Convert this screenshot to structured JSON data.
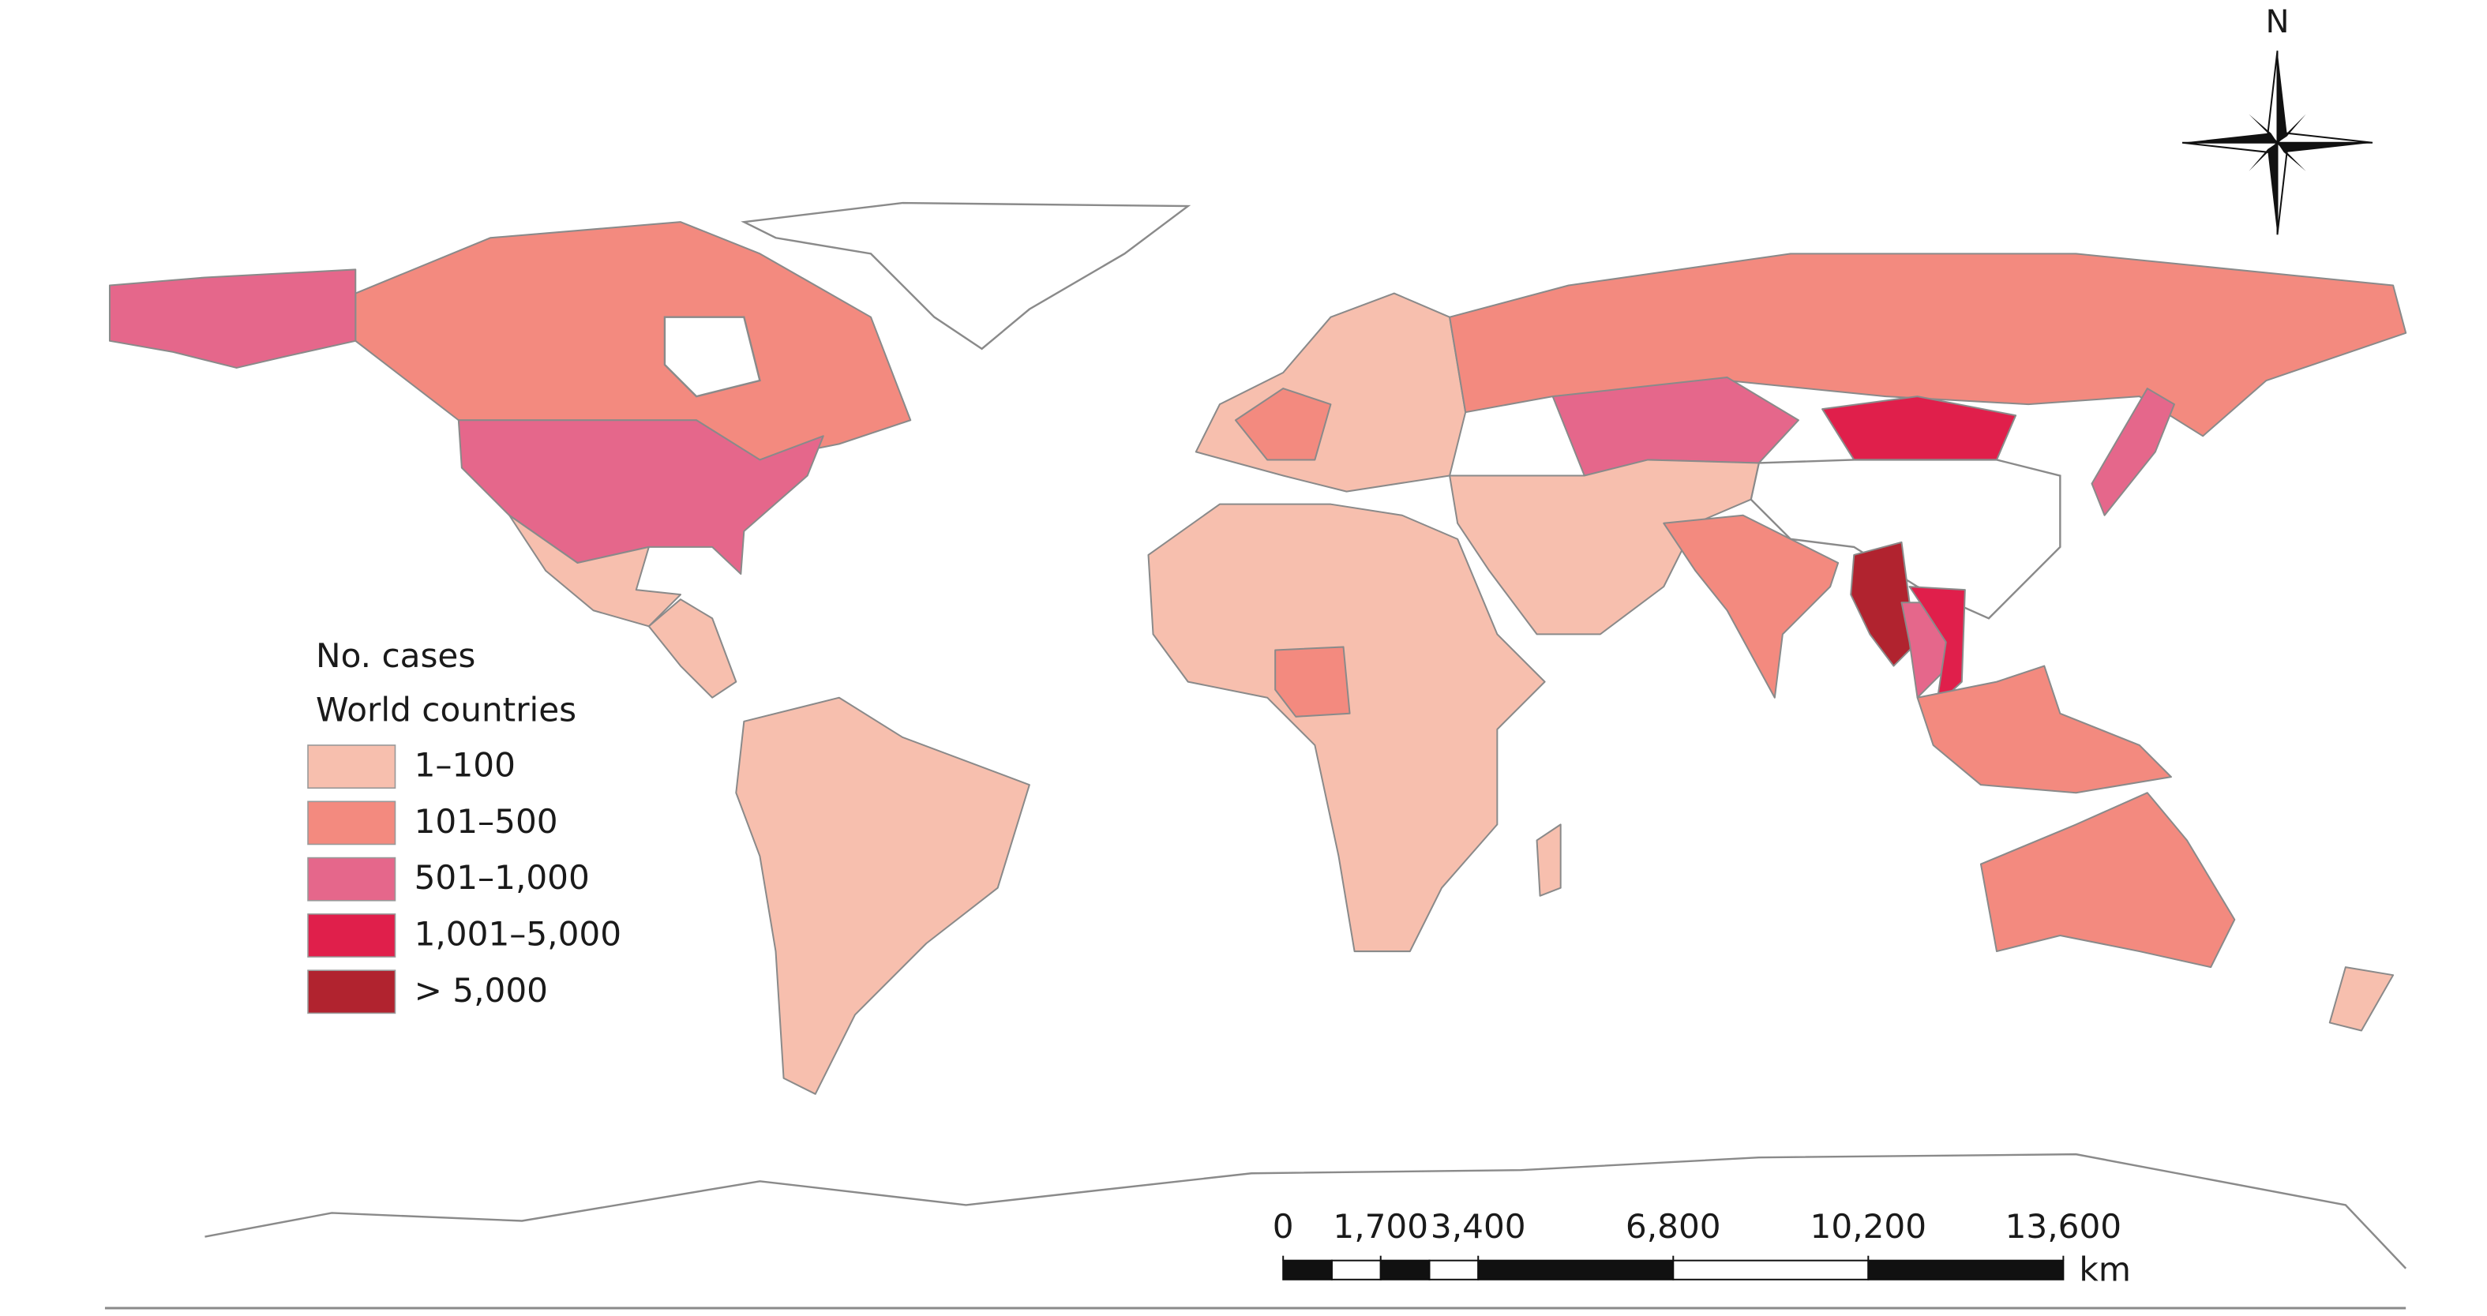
{
  "legend": {
    "title": "No. cases",
    "subtitle": "World countries",
    "items": [
      {
        "label": "1–100",
        "color": "#f7bfae"
      },
      {
        "label": "101–500",
        "color": "#f38a7f"
      },
      {
        "label": "501–1,000",
        "color": "#e5678b"
      },
      {
        "label": "1,001–5,000",
        "color": "#e01f4b"
      },
      {
        "label": "> 5,000",
        "color": "#b1232f"
      }
    ]
  },
  "north_arrow": {
    "label": "N"
  },
  "scale_bar": {
    "unit": "km",
    "ticks": [
      0,
      {
        "value": 1700,
        "label": "1,700"
      },
      {
        "value": 3400,
        "label": "3,400"
      },
      {
        "value": 6800,
        "label": "6,800"
      },
      {
        "value": 10200,
        "label": "10,200"
      },
      {
        "value": 13600,
        "label": "13,600"
      }
    ]
  }
}
